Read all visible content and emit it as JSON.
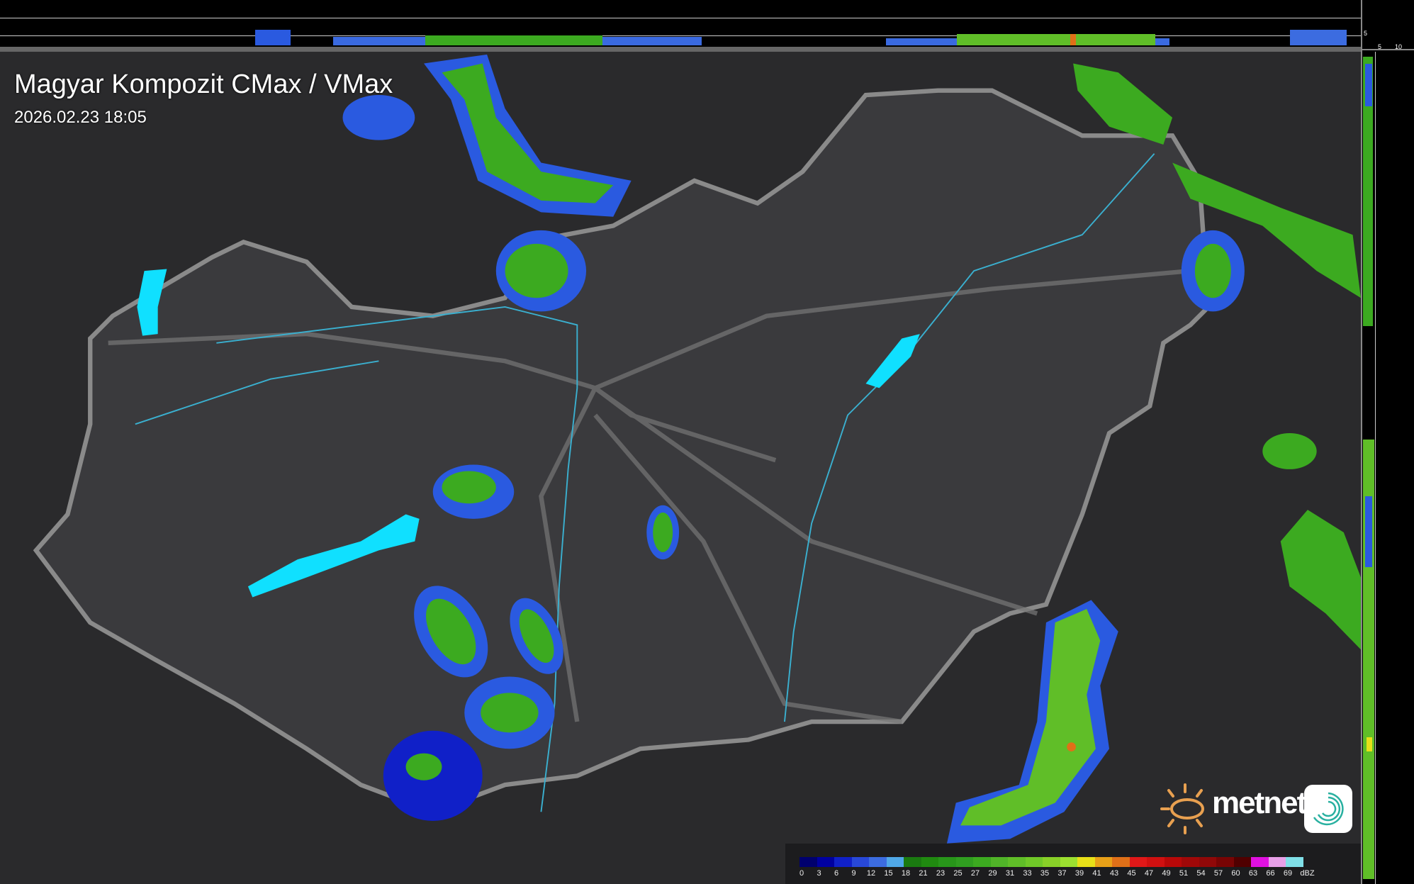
{
  "title": "Magyar Kompozit CMax / VMax",
  "timestamp": "2026.02.23 18:05",
  "profile_axes": {
    "top_ticks": [
      "10",
      "5"
    ],
    "right_ticks": [
      "5",
      "10"
    ]
  },
  "logo": {
    "text": "metnet",
    "icons": [
      "sun-logo-icon",
      "spiral-app-icon"
    ]
  },
  "legend": {
    "unit": "dBZ",
    "labels": [
      "0",
      "3",
      "6",
      "9",
      "12",
      "15",
      "18",
      "21",
      "23",
      "25",
      "27",
      "29",
      "31",
      "33",
      "35",
      "37",
      "39",
      "41",
      "43",
      "45",
      "47",
      "49",
      "51",
      "54",
      "57",
      "60",
      "63",
      "66",
      "69"
    ],
    "colors": [
      "#00006e",
      "#0000a0",
      "#1020c8",
      "#2848d8",
      "#3c6ce0",
      "#50a8e8",
      "#1a7a10",
      "#208a10",
      "#28961a",
      "#309e20",
      "#3caa20",
      "#50b428",
      "#60be28",
      "#70c828",
      "#88d028",
      "#9ce030",
      "#e8e018",
      "#e8a018",
      "#e07018",
      "#e01818",
      "#d01010",
      "#b80808",
      "#a00808",
      "#900808",
      "#780404",
      "#500000",
      "#e010e0",
      "#e8a0e8",
      "#80e0e8"
    ]
  },
  "colors": {
    "background": "#2a2a2c",
    "country": "#3a3a3d",
    "border": "#8a8a8a",
    "rivers": "#3ab0d0",
    "lakes": "#10e0ff"
  }
}
